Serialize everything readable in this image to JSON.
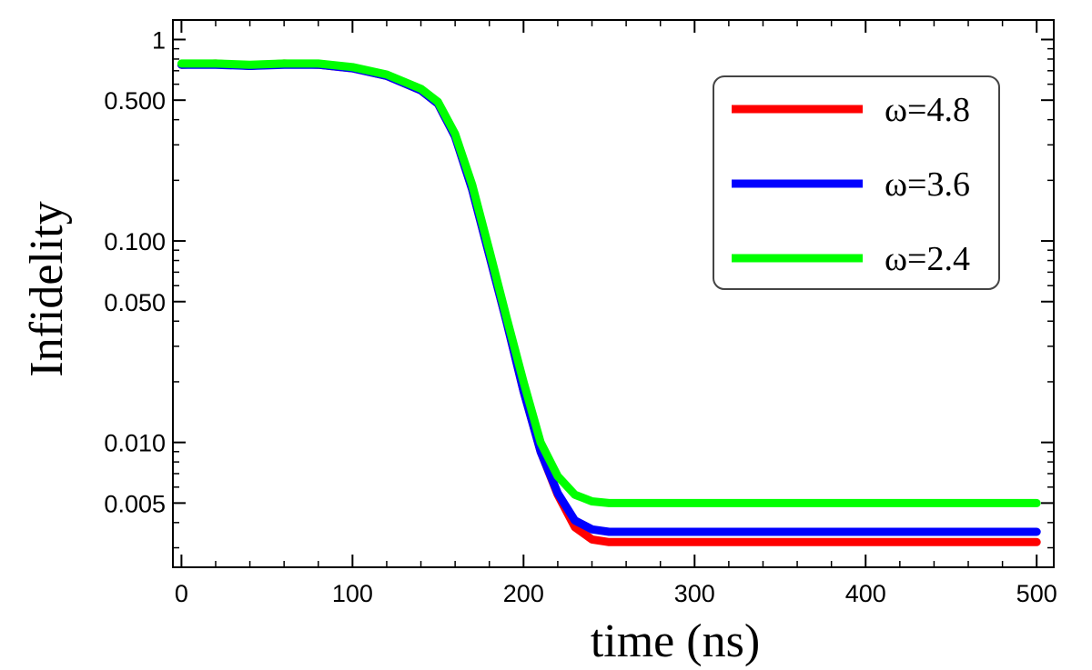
{
  "chart_data": {
    "type": "line",
    "title": "",
    "xlabel": "time (ns)",
    "ylabel": "Infidelity",
    "xlim": [
      -5,
      510
    ],
    "ylim": [
      0.0024,
      1.25
    ],
    "yscale": "log",
    "grid": false,
    "legend_position": "top-right",
    "x_ticks": [
      0,
      100,
      200,
      300,
      400,
      500
    ],
    "x_tick_labels": [
      "0",
      "100",
      "200",
      "300",
      "400",
      "500"
    ],
    "y_ticks": [
      1,
      0.5,
      0.1,
      0.05,
      0.01,
      0.005
    ],
    "y_tick_labels": [
      "1",
      "0.500",
      "0.100",
      "0.050",
      "0.010",
      "0.005"
    ],
    "series": [
      {
        "name": "ω=4.8",
        "color": "#ff0000",
        "x": [
          0,
          20,
          40,
          60,
          80,
          100,
          120,
          140,
          150,
          160,
          170,
          180,
          190,
          200,
          210,
          220,
          230,
          240,
          250,
          260,
          270,
          280,
          300,
          350,
          400,
          450,
          500
        ],
        "y": [
          0.75,
          0.76,
          0.74,
          0.76,
          0.75,
          0.72,
          0.66,
          0.56,
          0.48,
          0.33,
          0.18,
          0.085,
          0.04,
          0.018,
          0.009,
          0.0055,
          0.0038,
          0.0033,
          0.0032,
          0.0032,
          0.0032,
          0.0032,
          0.0032,
          0.0032,
          0.0032,
          0.0032,
          0.0032
        ]
      },
      {
        "name": "ω=3.6",
        "color": "#0000ff",
        "x": [
          0,
          20,
          40,
          60,
          80,
          100,
          120,
          140,
          150,
          160,
          170,
          180,
          190,
          200,
          210,
          220,
          230,
          240,
          250,
          260,
          270,
          280,
          300,
          350,
          400,
          450,
          500
        ],
        "y": [
          0.75,
          0.75,
          0.74,
          0.75,
          0.75,
          0.72,
          0.66,
          0.56,
          0.48,
          0.33,
          0.18,
          0.085,
          0.04,
          0.018,
          0.009,
          0.0056,
          0.0041,
          0.0037,
          0.0036,
          0.0036,
          0.0036,
          0.0036,
          0.0036,
          0.0036,
          0.0036,
          0.0036,
          0.0036
        ]
      },
      {
        "name": "ω=2.4",
        "color": "#00ff00",
        "x": [
          0,
          20,
          40,
          60,
          80,
          100,
          120,
          140,
          150,
          160,
          170,
          180,
          190,
          200,
          210,
          220,
          230,
          240,
          250,
          260,
          270,
          280,
          300,
          350,
          400,
          450,
          500
        ],
        "y": [
          0.76,
          0.76,
          0.75,
          0.76,
          0.76,
          0.73,
          0.67,
          0.57,
          0.49,
          0.34,
          0.19,
          0.09,
          0.042,
          0.02,
          0.01,
          0.0068,
          0.0055,
          0.0051,
          0.005,
          0.005,
          0.005,
          0.005,
          0.005,
          0.005,
          0.005,
          0.005,
          0.005
        ]
      }
    ]
  }
}
